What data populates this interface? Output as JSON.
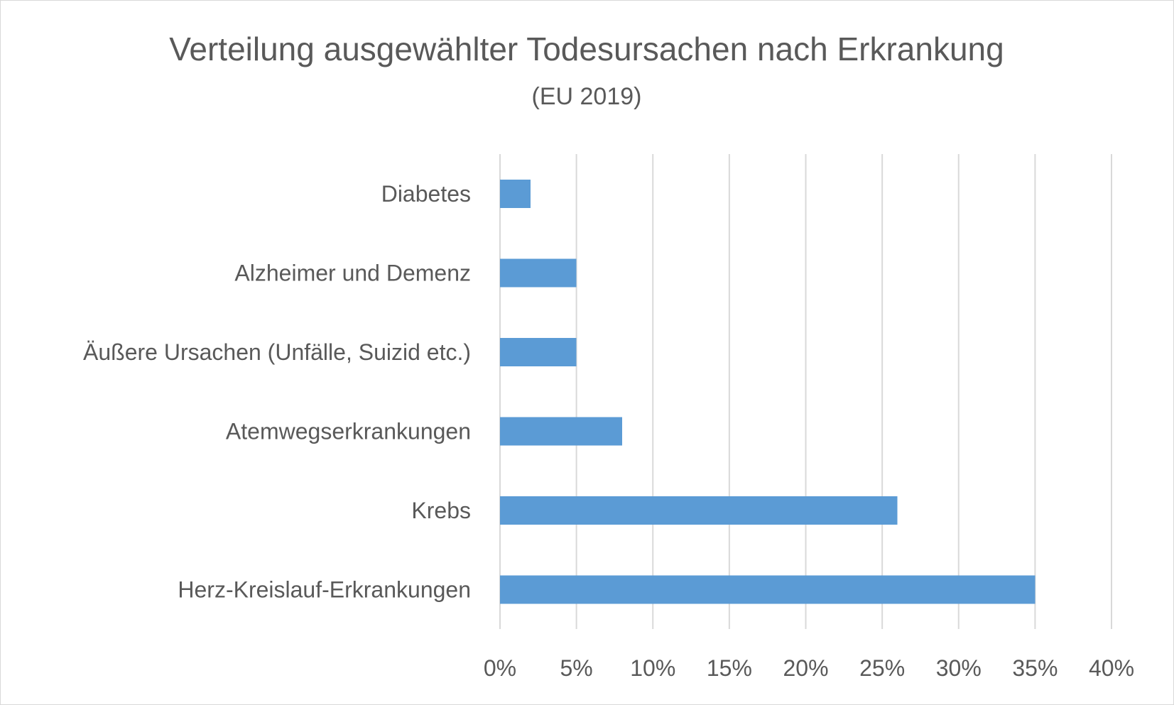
{
  "chart_data": {
    "type": "bar",
    "orientation": "horizontal",
    "title": "Verteilung ausgewählter Todesursachen nach Erkrankung",
    "subtitle": "(EU 2019)",
    "categories": [
      "Diabetes",
      "Alzheimer und Demenz",
      "Äußere Ursachen (Unfälle, Suizid etc.)",
      "Atemwegserkrankungen",
      "Krebs",
      "Herz-Kreislauf-Erkrankungen"
    ],
    "values": [
      2,
      5,
      5,
      8,
      26,
      35
    ],
    "value_unit": "%",
    "xlim": [
      0,
      40
    ],
    "ticks": [
      0,
      5,
      10,
      15,
      20,
      25,
      30,
      35,
      40
    ],
    "tick_labels": [
      "0%",
      "5%",
      "10%",
      "15%",
      "20%",
      "25%",
      "30%",
      "35%",
      "40%"
    ],
    "grid": true,
    "legend": "none",
    "bar_color": "#5b9bd5"
  }
}
